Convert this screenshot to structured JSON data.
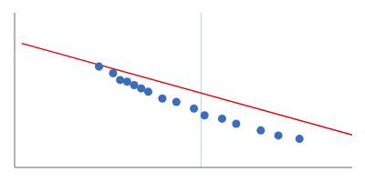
{
  "chart_data": {
    "type": "scatter",
    "tick_labels": false,
    "grid": false,
    "xlim": [
      -0.06,
      0.42
    ],
    "ylim": [
      0.46,
      0.92
    ],
    "series": [
      {
        "type": "vline",
        "color": "#add8e6",
        "x": [
          0.205
        ]
      },
      {
        "type": "line",
        "color": "#e8000d",
        "x": [
          -0.05,
          0.42
        ],
        "values": [
          0.829,
          0.5564
        ]
      },
      {
        "type": "scatter",
        "color": "#3a6dbd",
        "x": [
          0.06,
          0.08,
          0.09,
          0.1,
          0.11,
          0.12,
          0.13,
          0.15,
          0.17,
          0.195,
          0.21,
          0.235,
          0.255,
          0.29,
          0.315,
          0.345
        ],
        "values": [
          0.76,
          0.74,
          0.72,
          0.715,
          0.705,
          0.695,
          0.685,
          0.665,
          0.655,
          0.635,
          0.615,
          0.605,
          0.59,
          0.57,
          0.555,
          0.545
        ]
      }
    ]
  }
}
